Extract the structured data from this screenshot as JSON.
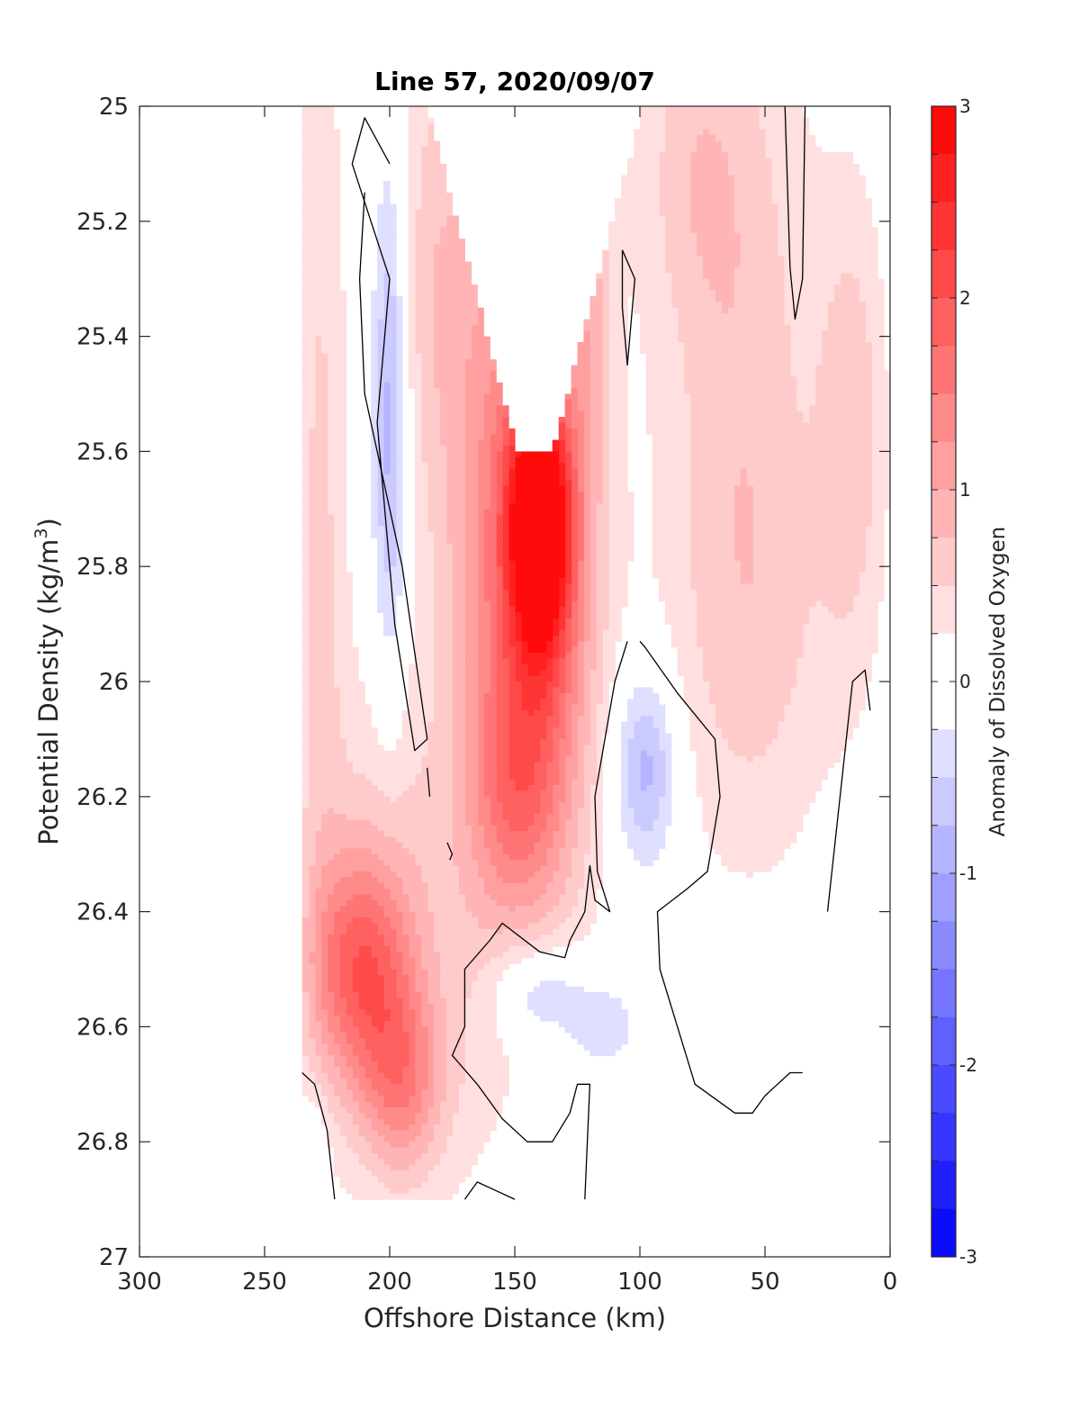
{
  "chart_data": {
    "type": "heatmap",
    "subtype": "filled-contour section",
    "title": "Line 57, 2020/09/07",
    "xlabel": "Offshore Distance (km)",
    "ylabel": "Potential Density (kg/m3)",
    "ylabel_parts": {
      "main": "Potential Density (kg/m",
      "sup": "3",
      "end": ")"
    },
    "xlim": [
      0,
      300
    ],
    "x_reversed": true,
    "ylim": [
      25,
      27
    ],
    "y_reversed": true,
    "x_ticks": [
      300,
      250,
      200,
      150,
      100,
      50,
      0
    ],
    "x_tick_labels": [
      "300",
      "250",
      "200",
      "150",
      "100",
      "50",
      "0"
    ],
    "y_ticks": [
      25,
      25.2,
      25.4,
      25.6,
      25.8,
      26,
      26.2,
      26.4,
      26.6,
      26.8,
      27
    ],
    "y_tick_labels": [
      "25",
      "25.2",
      "25.4",
      "25.6",
      "25.8",
      "26",
      "26.2",
      "26.4",
      "26.6",
      "26.8",
      "27"
    ],
    "grid": false,
    "data_extent": {
      "x": [
        0,
        235
      ],
      "y": [
        25,
        26.9
      ]
    },
    "colorbar": {
      "label": "Anomaly of Dissolved Oxygen",
      "range": [
        -3,
        3
      ],
      "ticks": [
        3,
        2,
        1,
        0,
        -1,
        -2,
        -3
      ],
      "tick_labels": [
        "3",
        "2",
        "1",
        "0",
        "-1",
        "-2",
        "-3"
      ],
      "levels": 24,
      "colormap": "blue-white-red",
      "low_color": "#0000ff",
      "mid_color": "#ffffff",
      "high_color": "#ff0000",
      "white_band": [
        -0.25,
        0.25
      ]
    },
    "features": [
      {
        "name": "core-positive-anomaly",
        "x_range": [
          110,
          160
        ],
        "y_range": [
          25.6,
          26.4
        ],
        "max_value": 3
      },
      {
        "name": "deep-positive-anomaly",
        "x_range": [
          180,
          235
        ],
        "y_range": [
          26.0,
          26.9
        ],
        "max_value": 1.5
      },
      {
        "name": "inshore-weak-positive",
        "x_range": [
          0,
          100
        ],
        "y_range": [
          25.0,
          26.35
        ],
        "max_value": 1
      },
      {
        "name": "negative-anomaly-offshore",
        "x_range": [
          190,
          210
        ],
        "y_range": [
          25.2,
          25.95
        ],
        "min_value": -0.5
      },
      {
        "name": "negative-anomaly-mid",
        "x_range": [
          85,
          115
        ],
        "y_range": [
          26.0,
          26.3
        ],
        "min_value": -0.75
      },
      {
        "name": "negative-anomaly-deep",
        "x_range": [
          100,
          160
        ],
        "y_range": [
          26.48,
          26.65
        ],
        "min_value": -0.75
      }
    ],
    "zero_contour": "black line"
  },
  "colors": {
    "zero_contour": "#000000",
    "axes": "#262626",
    "background": "#ffffff"
  }
}
